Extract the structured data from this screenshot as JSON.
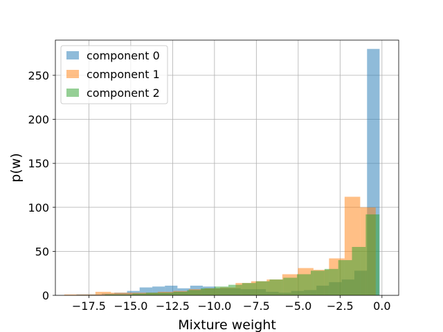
{
  "chart_data": {
    "type": "bar",
    "subtype": "overlapping-histogram",
    "title": "",
    "xlabel": "Mixture weight",
    "ylabel": "p(w)",
    "xlim": [
      -19.5,
      1.0
    ],
    "ylim": [
      0,
      290
    ],
    "grid": true,
    "legend_position": "top-left",
    "x_ticks": [
      -17.5,
      -15.0,
      -12.5,
      -10.0,
      -7.5,
      -5.0,
      -2.5,
      0.0
    ],
    "x_tick_labels": [
      "−17.5",
      "−15.0",
      "−12.5",
      "−10.0",
      "−7.5",
      "−5.0",
      "−2.5",
      "0.0"
    ],
    "y_ticks": [
      0,
      50,
      100,
      150,
      200,
      250
    ],
    "y_tick_labels": [
      "0",
      "50",
      "100",
      "150",
      "200",
      "250"
    ],
    "series": [
      {
        "name": "component 0",
        "color": "#1f77b4",
        "opacity": 0.5,
        "bin_edges": [
          -18.24,
          -17.49,
          -16.73,
          -15.98,
          -15.22,
          -14.47,
          -13.71,
          -12.96,
          -12.21,
          -11.45,
          -10.7,
          -9.94,
          -9.19,
          -8.44,
          -7.68,
          -6.93,
          -6.17,
          -5.42,
          -4.66,
          -3.91,
          -3.16,
          -2.4,
          -1.65,
          -0.89,
          -0.14
        ],
        "values": [
          1,
          1,
          2,
          3,
          5,
          9,
          10,
          11,
          8,
          11,
          10,
          8,
          8,
          7,
          7,
          4,
          3,
          5,
          6,
          11,
          15,
          18,
          28,
          280
        ]
      },
      {
        "name": "component 1",
        "color": "#ff7f0e",
        "opacity": 0.5,
        "bin_edges": [
          -18.97,
          -18.04,
          -17.11,
          -16.18,
          -15.25,
          -14.32,
          -13.39,
          -12.46,
          -11.53,
          -10.6,
          -9.67,
          -8.74,
          -7.81,
          -6.88,
          -5.95,
          -5.02,
          -4.09,
          -3.16,
          -2.23,
          -1.3,
          -0.37
        ],
        "values": [
          1,
          1,
          4,
          3,
          3,
          3,
          4,
          5,
          7,
          8,
          9,
          14,
          16,
          18,
          24,
          31,
          29,
          42,
          112,
          100
        ]
      },
      {
        "name": "component 2",
        "color": "#2ca02c",
        "opacity": 0.5,
        "bin_edges": [
          -16.54,
          -15.72,
          -14.9,
          -14.09,
          -13.27,
          -12.45,
          -11.63,
          -10.81,
          -9.99,
          -9.17,
          -8.35,
          -7.53,
          -6.71,
          -5.89,
          -5.07,
          -4.25,
          -3.43,
          -2.61,
          -1.79,
          -0.97,
          -0.15
        ],
        "values": [
          1,
          1,
          2,
          3,
          3,
          4,
          6,
          8,
          10,
          12,
          14,
          16,
          18,
          20,
          24,
          28,
          30,
          40,
          55,
          92
        ]
      }
    ]
  }
}
